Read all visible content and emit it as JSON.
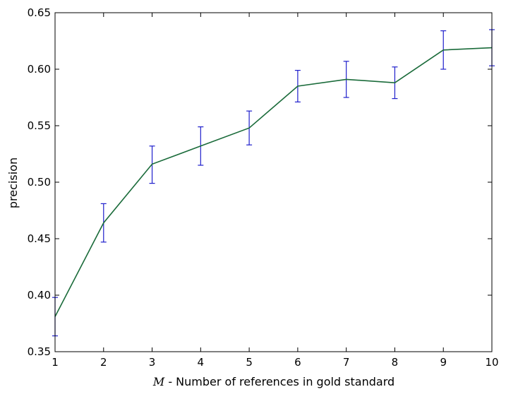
{
  "chart_data": {
    "type": "line",
    "title": "",
    "xlabel_symbol": "M",
    "xlabel_text": " - Number of references in gold standard",
    "ylabel": "precision",
    "xlim": [
      1,
      10
    ],
    "ylim": [
      0.35,
      0.65
    ],
    "xticks": [
      1,
      2,
      3,
      4,
      5,
      6,
      7,
      8,
      9,
      10
    ],
    "yticks": [
      0.35,
      0.4,
      0.45,
      0.5,
      0.55,
      0.6,
      0.65
    ],
    "ytick_labels": [
      "0.35",
      "0.40",
      "0.45",
      "0.50",
      "0.55",
      "0.60",
      "0.65"
    ],
    "grid": false,
    "legend": "none",
    "series": [
      {
        "x": [
          1,
          2,
          3,
          4,
          5,
          6,
          7,
          8,
          9,
          10
        ],
        "values": [
          0.381,
          0.464,
          0.516,
          0.532,
          0.548,
          0.585,
          0.591,
          0.588,
          0.617,
          0.619
        ],
        "err_low": [
          0.364,
          0.447,
          0.499,
          0.515,
          0.533,
          0.571,
          0.575,
          0.574,
          0.6,
          0.603
        ],
        "err_high": [
          0.398,
          0.481,
          0.532,
          0.549,
          0.563,
          0.599,
          0.607,
          0.602,
          0.634,
          0.635
        ],
        "line_color": "#1a6b3a",
        "errorbar_color": "#1f1fcc"
      }
    ]
  }
}
